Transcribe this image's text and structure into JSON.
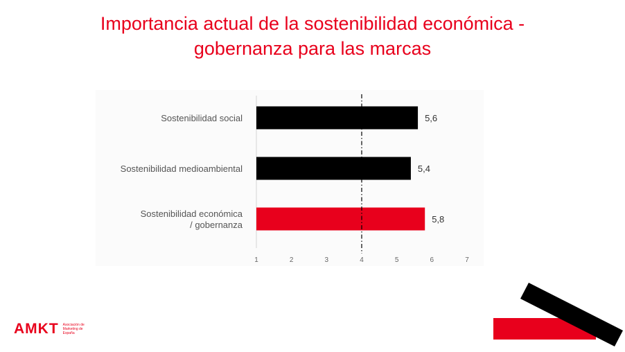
{
  "slide": {
    "title_line1": "Importancia actual de la sostenibilidad económica -",
    "title_line2": "gobernanza para las marcas"
  },
  "logo": {
    "mark": "AMKT",
    "subtitle": "Asociación de Marketing de España"
  },
  "colors": {
    "accent_red": "#e8001c",
    "bar_black": "#000000",
    "bar_red": "#e8001c"
  },
  "chart_data": {
    "type": "bar",
    "orientation": "horizontal",
    "title": "",
    "xlabel": "",
    "ylabel": "",
    "xlim": [
      1,
      7
    ],
    "ticks": [
      1,
      2,
      3,
      4,
      5,
      6,
      7
    ],
    "reference_line": 4,
    "grid": false,
    "categories": [
      [
        "Sostenibilidad social"
      ],
      [
        "Sostenibilidad medioambiental"
      ],
      [
        "Sostenibilidad económica",
        "/ gobernanza"
      ]
    ],
    "values": [
      5.6,
      5.4,
      5.8
    ],
    "value_labels": [
      "5,6",
      "5,4",
      "5,8"
    ],
    "bar_colors": [
      "#000000",
      "#000000",
      "#e8001c"
    ]
  }
}
